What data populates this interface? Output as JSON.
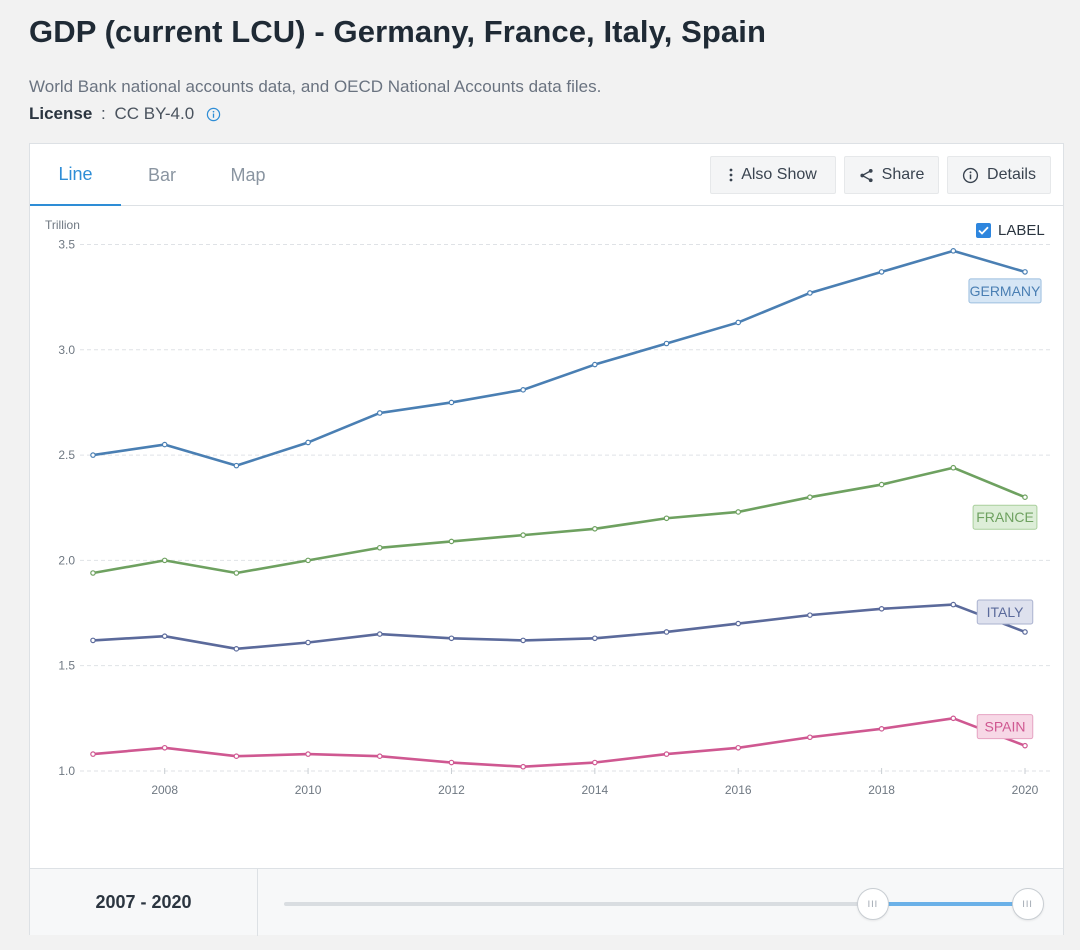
{
  "header": {
    "title": "GDP (current LCU) - Germany, France, Italy, Spain",
    "source": "World Bank national accounts data, and OECD National Accounts data files.",
    "license_label": "License",
    "license_sep": " : ",
    "license_value": "CC BY-4.0",
    "info_icon": "info-circle-icon"
  },
  "tabs": [
    {
      "label": "Line",
      "active": true
    },
    {
      "label": "Bar",
      "active": false
    },
    {
      "label": "Map",
      "active": false
    }
  ],
  "toolbar": {
    "also_show": {
      "label": "Also Show",
      "icon": "vertical-dots-icon"
    },
    "share": {
      "label": "Share",
      "icon": "share-icon"
    },
    "details": {
      "label": "Details",
      "icon": "info-circle-icon"
    }
  },
  "label_toggle": {
    "text": "LABEL",
    "checked": true
  },
  "range": {
    "text": "2007 - 2020",
    "start_fraction": 0.78,
    "end_fraction": 0.985,
    "handle_glyph": "III"
  },
  "chart_data": {
    "type": "line",
    "ylabel": "Trillion",
    "ylim": [
      0.9,
      3.55
    ],
    "xlim": [
      2007,
      2020
    ],
    "yticks": [
      1.0,
      1.5,
      2.0,
      2.5,
      3.0,
      3.5
    ],
    "ytick_labels": [
      "1.0",
      "1.5",
      "2.0",
      "2.5",
      "3.0",
      "3.5"
    ],
    "xticks": [
      2008,
      2010,
      2012,
      2014,
      2016,
      2018,
      2020
    ],
    "grid": true,
    "x": [
      2007,
      2008,
      2009,
      2010,
      2011,
      2012,
      2013,
      2014,
      2015,
      2016,
      2017,
      2018,
      2019,
      2020
    ],
    "series": [
      {
        "name": "GERMANY",
        "color": "#4a7fb3",
        "label_bg": "#d6e6f5",
        "label_border": "#9dbfdf",
        "values": [
          2.5,
          2.55,
          2.45,
          2.56,
          2.7,
          2.75,
          2.81,
          2.93,
          3.03,
          3.13,
          3.27,
          3.37,
          3.47,
          3.37
        ]
      },
      {
        "name": "FRANCE",
        "color": "#6ea160",
        "label_bg": "#ddeed8",
        "label_border": "#a9cf9c",
        "values": [
          1.94,
          2.0,
          1.94,
          2.0,
          2.06,
          2.09,
          2.12,
          2.15,
          2.2,
          2.23,
          2.3,
          2.36,
          2.44,
          2.3
        ]
      },
      {
        "name": "ITALY",
        "color": "#5b6a9b",
        "label_bg": "#dee1ee",
        "label_border": "#aab2cf",
        "values": [
          1.62,
          1.64,
          1.58,
          1.61,
          1.65,
          1.63,
          1.62,
          1.63,
          1.66,
          1.7,
          1.74,
          1.77,
          1.79,
          1.66
        ]
      },
      {
        "name": "SPAIN",
        "color": "#cf5891",
        "label_bg": "#f7d8e6",
        "label_border": "#e6a3c2",
        "values": [
          1.08,
          1.11,
          1.07,
          1.08,
          1.07,
          1.04,
          1.02,
          1.04,
          1.08,
          1.11,
          1.16,
          1.2,
          1.25,
          1.12
        ]
      }
    ]
  }
}
